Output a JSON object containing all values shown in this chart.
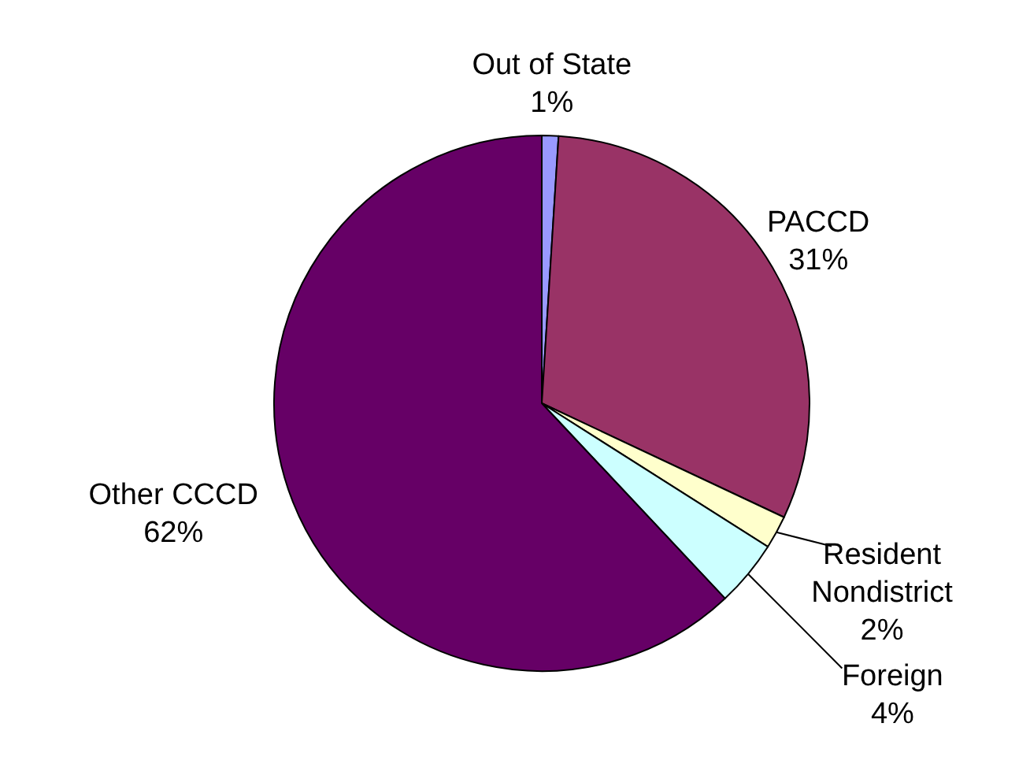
{
  "chart_data": {
    "type": "pie",
    "categories": [
      "Out of State",
      "PACCD",
      "Resident Nondistrict",
      "Foreign",
      "Other CCCD"
    ],
    "values": [
      1,
      31,
      2,
      4,
      62
    ],
    "colors": [
      "#9999ff",
      "#993366",
      "#ffffcc",
      "#ccffff",
      "#660066"
    ],
    "value_labels": [
      "1%",
      "31%",
      "2%",
      "4%",
      "62%"
    ]
  }
}
